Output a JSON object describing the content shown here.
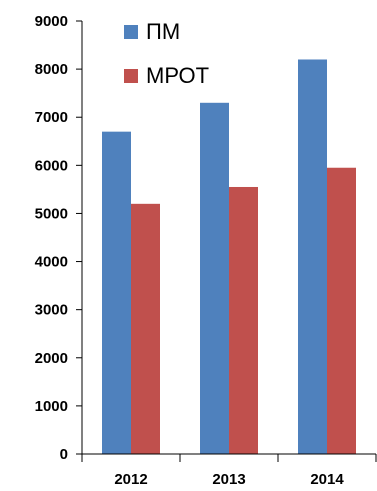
{
  "chart_data": {
    "type": "bar",
    "categories": [
      "2012",
      "2013",
      "2014"
    ],
    "series": [
      {
        "name": "ПМ",
        "values": [
          6700,
          7300,
          8200
        ],
        "color": "#4f81bd"
      },
      {
        "name": "МРОТ",
        "values": [
          5200,
          5550,
          5950
        ],
        "color": "#c0504d"
      }
    ],
    "ylim": [
      0,
      9000
    ],
    "yticks": [
      "0",
      "1000",
      "2000",
      "3000",
      "4000",
      "5000",
      "6000",
      "7000",
      "8000",
      "9000"
    ],
    "grid": false,
    "legend_position": "top-left"
  }
}
